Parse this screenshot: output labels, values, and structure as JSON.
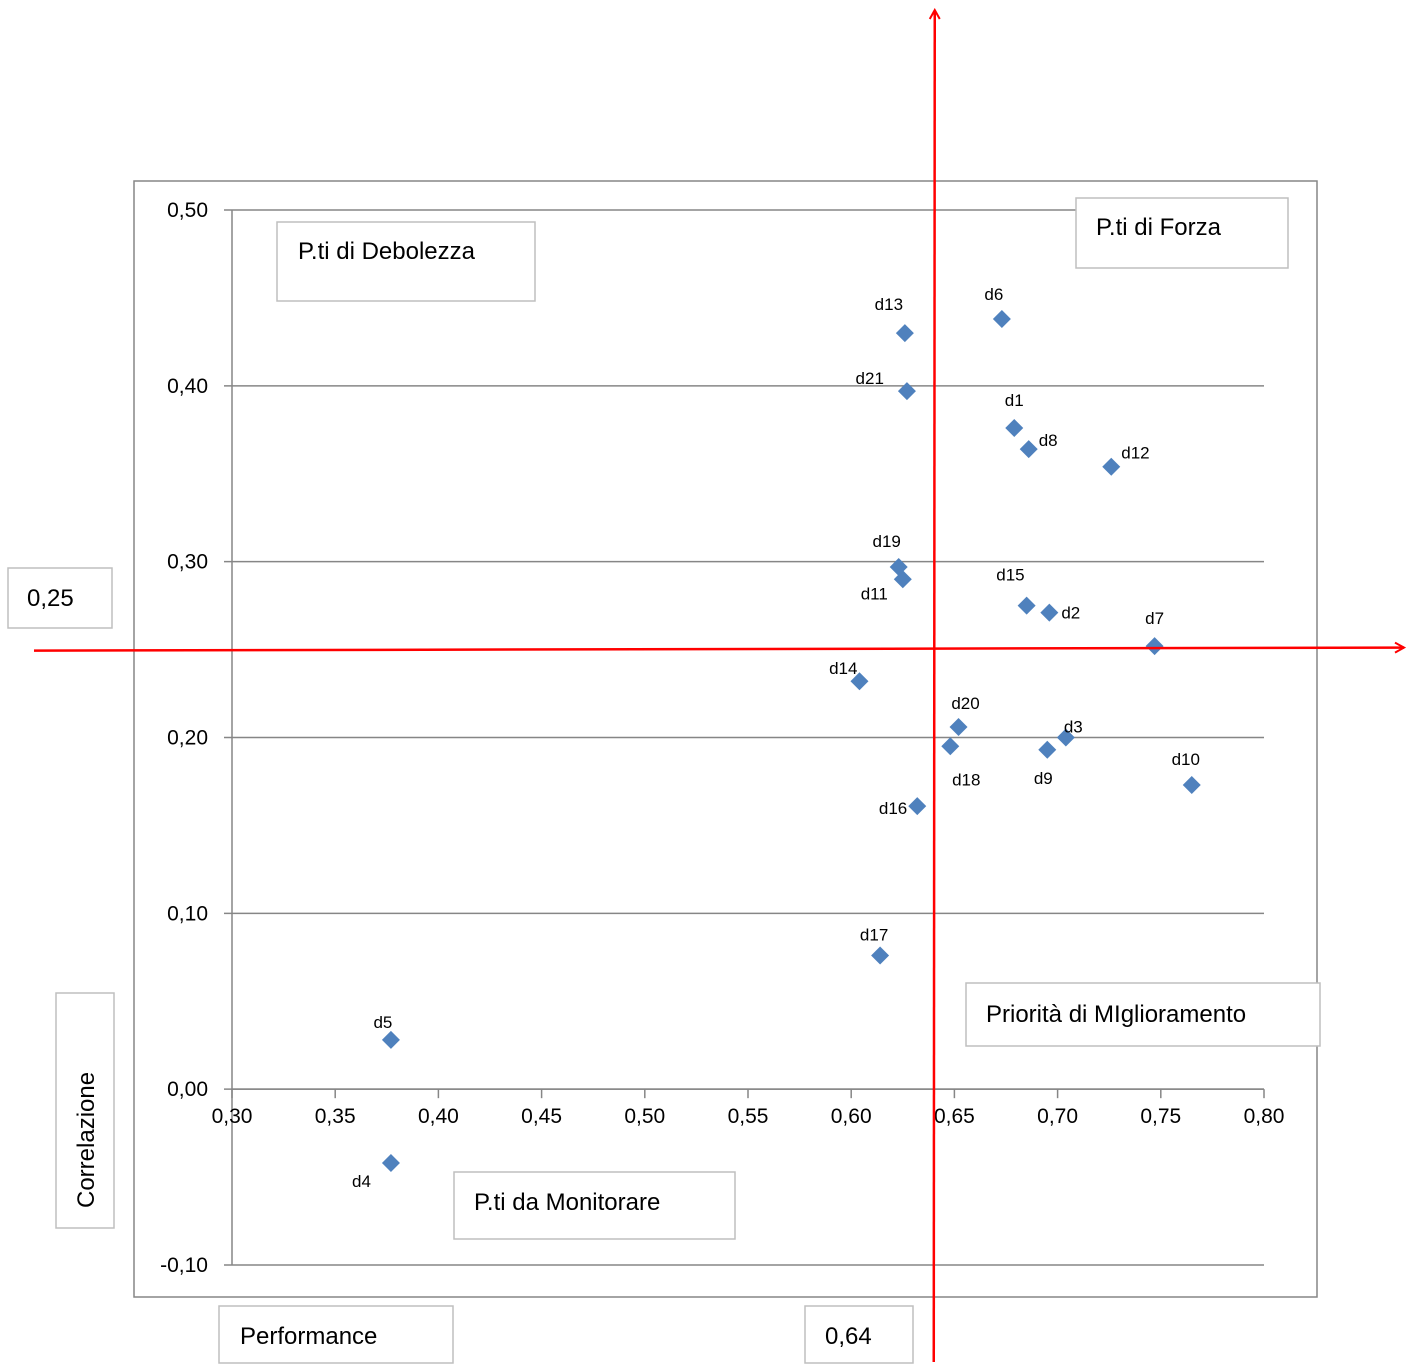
{
  "chart_data": {
    "type": "scatter",
    "title": "",
    "xlabel": "Performance",
    "ylabel": "Correlazione",
    "xlim": [
      0.3,
      0.8
    ],
    "ylim": [
      -0.1,
      0.5
    ],
    "x_ticks": [
      "0,30",
      "0,35",
      "0,40",
      "0,45",
      "0,50",
      "0,55",
      "0,60",
      "0,65",
      "0,70",
      "0,75",
      "0,80"
    ],
    "y_ticks": [
      "-0,10",
      "0,00",
      "0,10",
      "0,20",
      "0,30",
      "0,40",
      "0,50"
    ],
    "grid": "horizontal",
    "marker_color": "#4F81BD",
    "reference_line_color": "#FF0000",
    "reference_lines": {
      "x": 0.64,
      "y": 0.25,
      "x_label": "0,64",
      "y_label": "0,25"
    },
    "quadrant_labels": {
      "top_left": "P.ti di Debolezza",
      "top_right": "P.ti di Forza",
      "bottom_right": "Priorità di MIglioramento",
      "bottom_left": "P.ti da  Monitorare"
    },
    "points": [
      {
        "label": "d1",
        "x": 0.679,
        "y": 0.376
      },
      {
        "label": "d2",
        "x": 0.696,
        "y": 0.271
      },
      {
        "label": "d3",
        "x": 0.704,
        "y": 0.2
      },
      {
        "label": "d4",
        "x": 0.377,
        "y": -0.042
      },
      {
        "label": "d5",
        "x": 0.377,
        "y": 0.028
      },
      {
        "label": "d6",
        "x": 0.673,
        "y": 0.438
      },
      {
        "label": "d7",
        "x": 0.747,
        "y": 0.252
      },
      {
        "label": "d8",
        "x": 0.686,
        "y": 0.364
      },
      {
        "label": "d9",
        "x": 0.695,
        "y": 0.193
      },
      {
        "label": "d10",
        "x": 0.765,
        "y": 0.173
      },
      {
        "label": "d11",
        "x": 0.625,
        "y": 0.29
      },
      {
        "label": "d12",
        "x": 0.726,
        "y": 0.354
      },
      {
        "label": "d13",
        "x": 0.626,
        "y": 0.43
      },
      {
        "label": "d14",
        "x": 0.604,
        "y": 0.232
      },
      {
        "label": "d15",
        "x": 0.685,
        "y": 0.275
      },
      {
        "label": "d16",
        "x": 0.632,
        "y": 0.161
      },
      {
        "label": "d17",
        "x": 0.614,
        "y": 0.076
      },
      {
        "label": "d18",
        "x": 0.648,
        "y": 0.195
      },
      {
        "label": "d19",
        "x": 0.623,
        "y": 0.297
      },
      {
        "label": "d20",
        "x": 0.652,
        "y": 0.206
      },
      {
        "label": "d21",
        "x": 0.627,
        "y": 0.397
      }
    ]
  }
}
